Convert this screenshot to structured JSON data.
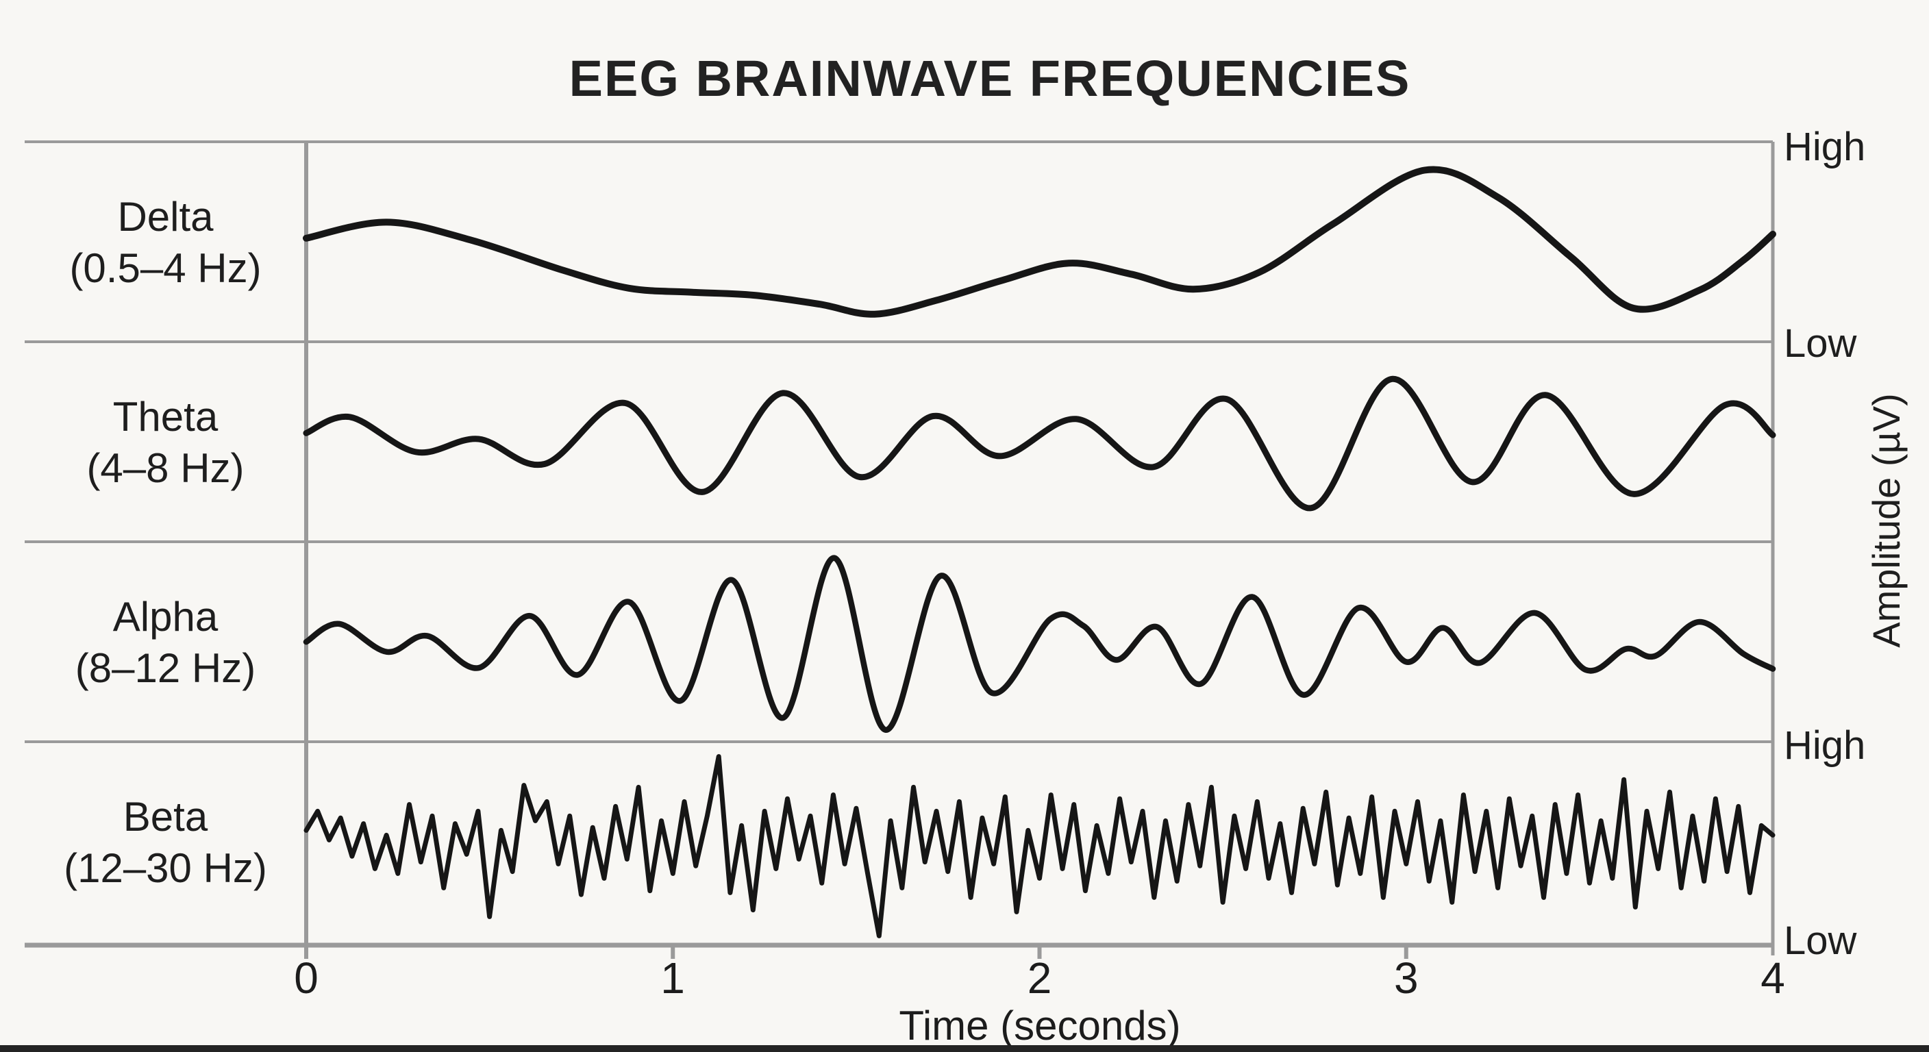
{
  "title": "EEG BRAINWAVE FREQUENCIES",
  "chart_data": {
    "type": "line",
    "title": "EEG BRAINWAVE FREQUENCIES",
    "xlabel": "Time (seconds)",
    "ylabel_right": "Amplitude (µV)",
    "x_range": [
      0,
      4
    ],
    "x_ticks": [
      "0",
      "1",
      "2",
      "3",
      "4"
    ],
    "grid": "row separators on, no vertical gridlines",
    "legend": "row labels in left column",
    "line_color": "#161616",
    "grid_color": "#9a9a9a",
    "amplitude_markers": {
      "high": "High",
      "low": "Low"
    },
    "series": [
      {
        "band": "Delta",
        "range_label": "(0.5–4 Hz)",
        "freq_range_hz": [
          0.5,
          4
        ],
        "style": "smooth",
        "points": [
          [
            0.0,
            0.04
          ],
          [
            0.22,
            0.2
          ],
          [
            0.45,
            0.02
          ],
          [
            0.7,
            -0.28
          ],
          [
            0.88,
            -0.46
          ],
          [
            1.05,
            -0.5
          ],
          [
            1.22,
            -0.53
          ],
          [
            1.4,
            -0.62
          ],
          [
            1.55,
            -0.72
          ],
          [
            1.72,
            -0.58
          ],
          [
            1.9,
            -0.38
          ],
          [
            2.08,
            -0.21
          ],
          [
            2.25,
            -0.32
          ],
          [
            2.42,
            -0.47
          ],
          [
            2.6,
            -0.3
          ],
          [
            2.8,
            0.18
          ],
          [
            3.05,
            0.72
          ],
          [
            3.25,
            0.45
          ],
          [
            3.45,
            -0.15
          ],
          [
            3.62,
            -0.66
          ],
          [
            3.8,
            -0.48
          ],
          [
            3.92,
            -0.18
          ],
          [
            4.0,
            0.08
          ]
        ]
      },
      {
        "band": "Theta",
        "range_label": "(4–8 Hz)",
        "freq_range_hz": [
          4,
          8
        ],
        "style": "smooth",
        "points": [
          [
            0.0,
            0.1
          ],
          [
            0.12,
            0.26
          ],
          [
            0.3,
            -0.09
          ],
          [
            0.47,
            0.04
          ],
          [
            0.65,
            -0.21
          ],
          [
            0.87,
            0.4
          ],
          [
            1.08,
            -0.49
          ],
          [
            1.3,
            0.5
          ],
          [
            1.51,
            -0.34
          ],
          [
            1.71,
            0.27
          ],
          [
            1.89,
            -0.13
          ],
          [
            2.1,
            0.24
          ],
          [
            2.31,
            -0.24
          ],
          [
            2.51,
            0.44
          ],
          [
            2.74,
            -0.65
          ],
          [
            2.96,
            0.64
          ],
          [
            3.18,
            -0.39
          ],
          [
            3.38,
            0.48
          ],
          [
            3.62,
            -0.51
          ],
          [
            3.87,
            0.38
          ],
          [
            4.0,
            0.08
          ]
        ]
      },
      {
        "band": "Alpha",
        "range_label": "(8–12 Hz)",
        "freq_range_hz": [
          8,
          12
        ],
        "style": "smooth",
        "points": [
          [
            0.0,
            0.02
          ],
          [
            0.09,
            0.2
          ],
          [
            0.22,
            -0.08
          ],
          [
            0.33,
            0.08
          ],
          [
            0.47,
            -0.24
          ],
          [
            0.61,
            0.28
          ],
          [
            0.74,
            -0.31
          ],
          [
            0.88,
            0.42
          ],
          [
            1.02,
            -0.57
          ],
          [
            1.16,
            0.64
          ],
          [
            1.3,
            -0.74
          ],
          [
            1.44,
            0.86
          ],
          [
            1.58,
            -0.86
          ],
          [
            1.73,
            0.68
          ],
          [
            1.87,
            -0.49
          ],
          [
            2.03,
            0.25
          ],
          [
            2.12,
            0.18
          ],
          [
            2.21,
            -0.16
          ],
          [
            2.32,
            0.17
          ],
          [
            2.44,
            -0.4
          ],
          [
            2.58,
            0.47
          ],
          [
            2.72,
            -0.51
          ],
          [
            2.87,
            0.36
          ],
          [
            3.0,
            -0.18
          ],
          [
            3.1,
            0.16
          ],
          [
            3.2,
            -0.19
          ],
          [
            3.35,
            0.31
          ],
          [
            3.49,
            -0.26
          ],
          [
            3.6,
            -0.05
          ],
          [
            3.68,
            -0.12
          ],
          [
            3.8,
            0.22
          ],
          [
            3.92,
            -0.1
          ],
          [
            4.0,
            -0.25
          ]
        ]
      },
      {
        "band": "Beta",
        "range_label": "(12–30 Hz)",
        "freq_range_hz": [
          12,
          30
        ],
        "style": "jagged",
        "dt": 0.03125,
        "values": [
          0.15,
          0.35,
          0.05,
          0.28,
          -0.12,
          0.22,
          -0.25,
          0.1,
          -0.3,
          0.42,
          -0.18,
          0.3,
          -0.45,
          0.22,
          -0.1,
          0.35,
          -0.75,
          0.15,
          -0.28,
          0.62,
          0.25,
          0.45,
          -0.2,
          0.3,
          -0.52,
          0.18,
          -0.35,
          0.4,
          -0.15,
          0.6,
          -0.48,
          0.25,
          -0.3,
          0.45,
          -0.22,
          0.3,
          0.92,
          -0.5,
          0.2,
          -0.68,
          0.35,
          -0.25,
          0.48,
          -0.15,
          0.3,
          -0.4,
          0.52,
          -0.2,
          0.38,
          -0.3,
          -0.95,
          0.25,
          -0.45,
          0.6,
          -0.18,
          0.35,
          -0.28,
          0.45,
          -0.55,
          0.28,
          -0.2,
          0.5,
          -0.7,
          0.15,
          -0.35,
          0.52,
          -0.25,
          0.42,
          -0.48,
          0.2,
          -0.3,
          0.48,
          -0.18,
          0.35,
          -0.55,
          0.25,
          -0.38,
          0.42,
          -0.22,
          0.6,
          -0.6,
          0.3,
          -0.25,
          0.45,
          -0.35,
          0.22,
          -0.5,
          0.38,
          -0.2,
          0.55,
          -0.42,
          0.28,
          -0.3,
          0.5,
          -0.55,
          0.35,
          -0.2,
          0.45,
          -0.38,
          0.25,
          -0.6,
          0.52,
          -0.28,
          0.35,
          -0.45,
          0.48,
          -0.22,
          0.3,
          -0.55,
          0.42,
          -0.3,
          0.52,
          -0.4,
          0.25,
          -0.35,
          0.68,
          -0.65,
          0.35,
          -0.25,
          0.55,
          -0.45,
          0.3,
          -0.38,
          0.48,
          -0.28,
          0.4,
          -0.5,
          0.2,
          0.1
        ]
      }
    ]
  }
}
